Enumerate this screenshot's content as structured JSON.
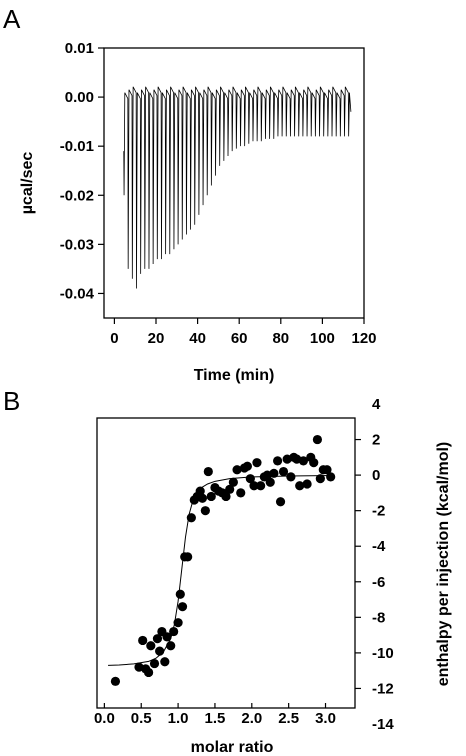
{
  "panels": {
    "a": "A",
    "b": "B"
  },
  "chart_data": [
    {
      "type": "line",
      "panel": "A",
      "xlabel": "Time (min)",
      "ylabel": "µcal/sec",
      "xlim": [
        -5,
        120
      ],
      "ylim": [
        -0.045,
        0.01
      ],
      "xticks": [
        "0",
        "20",
        "40",
        "60",
        "80",
        "100",
        "120"
      ],
      "yticks": [
        "0.01",
        "0.00",
        "-0.01",
        "-0.02",
        "-0.03",
        "-0.04"
      ],
      "grid": false,
      "injection_interval_min": 2,
      "first_injection_min": 4.5,
      "baseline_ucal_per_sec": 0.0015,
      "peak_minima_ucal_per_sec": [
        -0.02,
        -0.035,
        -0.037,
        -0.039,
        -0.036,
        -0.035,
        -0.035,
        -0.034,
        -0.033,
        -0.033,
        -0.032,
        -0.032,
        -0.031,
        -0.03,
        -0.029,
        -0.028,
        -0.027,
        -0.026,
        -0.024,
        -0.022,
        -0.02,
        -0.018,
        -0.016,
        -0.014,
        -0.013,
        -0.012,
        -0.011,
        -0.0105,
        -0.01,
        -0.01,
        -0.0095,
        -0.009,
        -0.009,
        -0.009,
        -0.0085,
        -0.0085,
        -0.0085,
        -0.008,
        -0.008,
        -0.008,
        -0.008,
        -0.008,
        -0.008,
        -0.008,
        -0.008,
        -0.008,
        -0.008,
        -0.008,
        -0.008,
        -0.008,
        -0.008,
        -0.008,
        -0.008,
        -0.008,
        -0.008
      ]
    },
    {
      "type": "scatter",
      "panel": "B",
      "xlabel": "molar ratio",
      "ylabel": "enthalpy per injection (kcal/mol)",
      "xlim": [
        -0.1,
        3.4
      ],
      "ylim": [
        -14,
        4
      ],
      "xticks": [
        "0.0",
        "0.5",
        "1.0",
        "1.5",
        "2.0",
        "2.5",
        "3.0"
      ],
      "yticks": [
        "4",
        "2",
        "0",
        "-2",
        "-4",
        "-6",
        "-8",
        "-10",
        "-12",
        "-14"
      ],
      "grid": false,
      "points": [
        [
          0.15,
          -11.6
        ],
        [
          0.47,
          -10.8
        ],
        [
          0.52,
          -9.3
        ],
        [
          0.56,
          -10.9
        ],
        [
          0.6,
          -11.1
        ],
        [
          0.63,
          -9.6
        ],
        [
          0.68,
          -10.6
        ],
        [
          0.72,
          -9.2
        ],
        [
          0.75,
          -9.9
        ],
        [
          0.78,
          -8.8
        ],
        [
          0.82,
          -10.5
        ],
        [
          0.85,
          -9.1
        ],
        [
          0.9,
          -9.6
        ],
        [
          0.94,
          -8.8
        ],
        [
          1.0,
          -8.3
        ],
        [
          1.03,
          -6.7
        ],
        [
          1.06,
          -7.4
        ],
        [
          1.09,
          -4.6
        ],
        [
          1.13,
          -4.6
        ],
        [
          1.18,
          -2.4
        ],
        [
          1.22,
          -1.4
        ],
        [
          1.26,
          -1.2
        ],
        [
          1.3,
          -0.9
        ],
        [
          1.33,
          -1.3
        ],
        [
          1.37,
          -2.0
        ],
        [
          1.41,
          0.2
        ],
        [
          1.45,
          -1.2
        ],
        [
          1.5,
          -0.7
        ],
        [
          1.55,
          -0.9
        ],
        [
          1.6,
          -1.0
        ],
        [
          1.65,
          -1.2
        ],
        [
          1.7,
          -0.8
        ],
        [
          1.75,
          -0.4
        ],
        [
          1.8,
          0.3
        ],
        [
          1.85,
          -1.0
        ],
        [
          1.9,
          0.4
        ],
        [
          1.94,
          0.5
        ],
        [
          1.98,
          -0.2
        ],
        [
          2.03,
          -0.6
        ],
        [
          2.07,
          0.7
        ],
        [
          2.12,
          -0.6
        ],
        [
          2.17,
          -0.1
        ],
        [
          2.21,
          0.0
        ],
        [
          2.25,
          -0.4
        ],
        [
          2.3,
          0.1
        ],
        [
          2.35,
          0.8
        ],
        [
          2.39,
          -1.5
        ],
        [
          2.43,
          0.2
        ],
        [
          2.48,
          0.9
        ],
        [
          2.53,
          -0.1
        ],
        [
          2.57,
          1.0
        ],
        [
          2.61,
          0.9
        ],
        [
          2.65,
          -0.6
        ],
        [
          2.7,
          0.8
        ],
        [
          2.75,
          -0.5
        ],
        [
          2.8,
          1.0
        ],
        [
          2.84,
          0.7
        ],
        [
          2.89,
          2.0
        ],
        [
          2.93,
          -0.2
        ],
        [
          2.97,
          0.3
        ],
        [
          3.02,
          0.3
        ],
        [
          3.07,
          -0.1
        ]
      ],
      "fit_curve": {
        "x": [
          0.05,
          0.2,
          0.4,
          0.6,
          0.7,
          0.8,
          0.9,
          0.95,
          1.0,
          1.05,
          1.1,
          1.15,
          1.2,
          1.25,
          1.3,
          1.4,
          1.5,
          1.7,
          2.0,
          2.5,
          3.1
        ],
        "y": [
          -10.7,
          -10.68,
          -10.62,
          -10.48,
          -10.3,
          -9.95,
          -9.2,
          -8.4,
          -7.1,
          -5.3,
          -3.5,
          -2.2,
          -1.45,
          -1.0,
          -0.75,
          -0.5,
          -0.35,
          -0.2,
          -0.1,
          -0.05,
          -0.02
        ]
      }
    }
  ]
}
